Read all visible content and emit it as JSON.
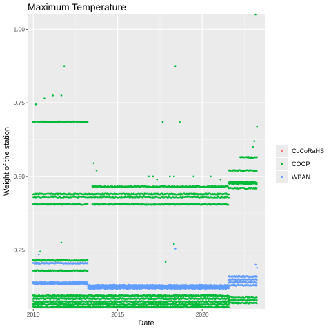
{
  "chart_data": {
    "type": "scatter",
    "title": "Maximum Temperature",
    "xlabel": "Date",
    "ylabel": "Weight of the station",
    "xlim": [
      "2009-09-01",
      "2023-10-01"
    ],
    "ylim": [
      0.05,
      1.05
    ],
    "x_ticks": [
      "2010",
      "2015",
      "2020"
    ],
    "y_ticks": [
      "0.25",
      "0.50",
      "0.75",
      "1.00"
    ],
    "grid": true,
    "legend_position": "right",
    "series": [
      {
        "name": "CoCoRaHS",
        "color": "#F8766D",
        "points": []
      },
      {
        "name": "COOP",
        "color": "#00BA38",
        "bands": [
          {
            "from": "2010-01-01",
            "to": "2013-03-31",
            "y": 0.405
          },
          {
            "from": "2013-07-01",
            "to": "2021-07-31",
            "y": 0.405
          },
          {
            "from": "2010-01-01",
            "to": "2021-07-31",
            "y": 0.43
          },
          {
            "from": "2010-01-01",
            "to": "2021-07-31",
            "y": 0.44
          },
          {
            "from": "2013-07-01",
            "to": "2021-07-31",
            "y": 0.465
          },
          {
            "from": "2021-08-01",
            "to": "2023-03-31",
            "y": 0.46
          },
          {
            "from": "2021-08-01",
            "to": "2023-03-31",
            "y": 0.475
          },
          {
            "from": "2021-08-01",
            "to": "2023-03-31",
            "y": 0.48
          },
          {
            "from": "2021-08-01",
            "to": "2023-03-31",
            "y": 0.52
          },
          {
            "from": "2022-04-01",
            "to": "2023-03-31",
            "y": 0.565
          },
          {
            "from": "2010-01-01",
            "to": "2013-03-31",
            "y": 0.685
          },
          {
            "from": "2010-01-01",
            "to": "2021-07-31",
            "y": 0.095
          },
          {
            "from": "2010-01-01",
            "to": "2021-07-31",
            "y": 0.085
          },
          {
            "from": "2010-01-01",
            "to": "2021-07-31",
            "y": 0.075
          },
          {
            "from": "2010-01-01",
            "to": "2021-07-31",
            "y": 0.065
          },
          {
            "from": "2010-01-01",
            "to": "2021-07-31",
            "y": 0.057
          },
          {
            "from": "2021-08-01",
            "to": "2023-03-31",
            "y": 0.09
          },
          {
            "from": "2021-08-01",
            "to": "2023-03-31",
            "y": 0.08
          },
          {
            "from": "2021-08-01",
            "to": "2023-03-31",
            "y": 0.07
          },
          {
            "from": "2010-01-01",
            "to": "2013-03-31",
            "y": 0.215
          },
          {
            "from": "2010-01-01",
            "to": "2013-03-31",
            "y": 0.18
          }
        ],
        "points": [
          {
            "x": "2010-03-01",
            "y": 0.745
          },
          {
            "x": "2010-09-01",
            "y": 0.765
          },
          {
            "x": "2011-03-01",
            "y": 0.775
          },
          {
            "x": "2011-09-01",
            "y": 0.775
          },
          {
            "x": "2011-11-01",
            "y": 0.875
          },
          {
            "x": "2013-08-01",
            "y": 0.545
          },
          {
            "x": "2013-10-01",
            "y": 0.52
          },
          {
            "x": "2016-11-01",
            "y": 0.5
          },
          {
            "x": "2017-02-01",
            "y": 0.5
          },
          {
            "x": "2017-05-01",
            "y": 0.49
          },
          {
            "x": "2017-09-01",
            "y": 0.685
          },
          {
            "x": "2017-11-01",
            "y": 0.21
          },
          {
            "x": "2018-02-01",
            "y": 0.5
          },
          {
            "x": "2018-06-01",
            "y": 0.875
          },
          {
            "x": "2018-05-01",
            "y": 0.5
          },
          {
            "x": "2018-09-01",
            "y": 0.685
          },
          {
            "x": "2019-07-01",
            "y": 0.5
          },
          {
            "x": "2020-07-01",
            "y": 0.5
          },
          {
            "x": "2021-02-01",
            "y": 0.49
          },
          {
            "x": "2018-05-01",
            "y": 0.27
          },
          {
            "x": "2011-09-01",
            "y": 0.275
          },
          {
            "x": "2010-06-01",
            "y": 0.245
          },
          {
            "x": "2023-01-01",
            "y": 0.6
          },
          {
            "x": "2023-02-01",
            "y": 0.62
          },
          {
            "x": "2023-04-01",
            "y": 0.67
          },
          {
            "x": "2023-03-01",
            "y": 1.05
          }
        ]
      },
      {
        "name": "WBAN",
        "color": "#619CFF",
        "bands": [
          {
            "from": "2010-01-01",
            "to": "2013-03-31",
            "y": 0.14
          },
          {
            "from": "2010-01-01",
            "to": "2013-03-31",
            "y": 0.135
          },
          {
            "from": "2013-04-01",
            "to": "2021-07-31",
            "y": 0.13
          },
          {
            "from": "2013-04-01",
            "to": "2021-07-31",
            "y": 0.125
          },
          {
            "from": "2013-04-01",
            "to": "2021-07-31",
            "y": 0.12
          },
          {
            "from": "2021-08-01",
            "to": "2023-03-31",
            "y": 0.16
          },
          {
            "from": "2021-08-01",
            "to": "2023-03-31",
            "y": 0.15
          },
          {
            "from": "2021-08-01",
            "to": "2023-03-31",
            "y": 0.14
          },
          {
            "from": "2021-08-01",
            "to": "2023-03-31",
            "y": 0.13
          },
          {
            "from": "2010-01-01",
            "to": "2013-03-31",
            "y": 0.205
          }
        ],
        "points": [
          {
            "x": "2010-05-01",
            "y": 0.235
          },
          {
            "x": "2023-03-01",
            "y": 0.2
          },
          {
            "x": "2023-04-01",
            "y": 0.19
          },
          {
            "x": "2018-06-01",
            "y": 0.255
          }
        ]
      }
    ]
  }
}
